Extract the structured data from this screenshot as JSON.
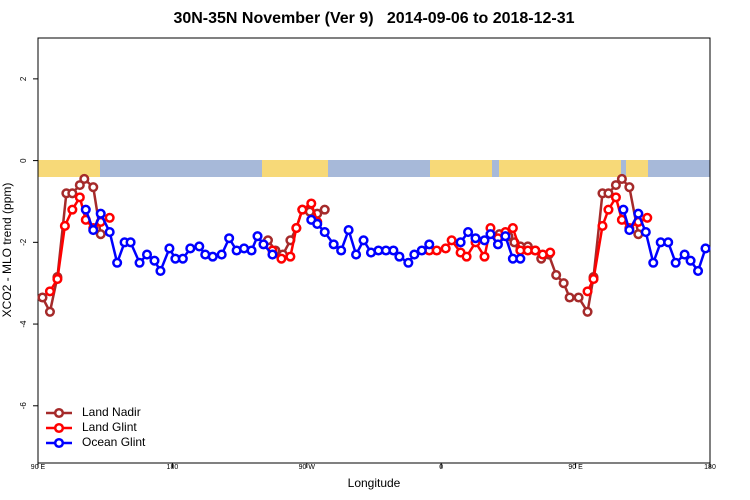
{
  "chart_data": {
    "type": "line",
    "title": "30N-35N November (Ver 9)   2014-09-06 to 2018-12-31",
    "x_label": "Longitude",
    "y_label": "XCO2 - MLO trend (ppm)",
    "xlim": [
      90,
      540
    ],
    "ylim": [
      -7.4,
      3.0
    ],
    "xticks": [
      {
        "value": 90,
        "label": "90 E"
      },
      180,
      {
        "value": 270,
        "label": "90 W"
      },
      {
        "value": 360,
        "label": "0"
      },
      {
        "value": 450,
        "label": "90 E"
      },
      {
        "value": 540,
        "label": "180"
      }
    ],
    "yticks": [
      2,
      0,
      -2,
      -4,
      -6
    ],
    "legend": "bottom-left",
    "grid": false,
    "series": [
      {
        "name": "Land Nadir",
        "color": "#a52a2a",
        "x": [
          93,
          98,
          103,
          109,
          113,
          118,
          121,
          127,
          132,
          null,
          244,
          249,
          254,
          259,
          263,
          267,
          272,
          277,
          282,
          null,
          399,
          405,
          409,
          413,
          418,
          423,
          427,
          432,
          437,
          442,
          446,
          452,
          458,
          462,
          468,
          472,
          477,
          481,
          486,
          492
        ],
        "values": [
          -3.35,
          -3.7,
          -2.85,
          -0.8,
          -0.8,
          -0.6,
          -0.45,
          -0.65,
          -1.8,
          null,
          -1.95,
          -2.2,
          -2.3,
          -1.95,
          -1.65,
          -1.2,
          -1.25,
          -1.3,
          -1.2,
          null,
          -1.8,
          -1.85,
          -2.0,
          -2.1,
          -2.1,
          -2.2,
          -2.4,
          -2.3,
          -2.8,
          -3.0,
          -3.35,
          -3.35,
          -3.7,
          -2.85,
          -0.8,
          -0.8,
          -0.6,
          -0.45,
          -0.65,
          -1.8
        ]
      },
      {
        "name": "Land Glint",
        "color": "#ff0000",
        "x": [
          98,
          103,
          108,
          113,
          118,
          122,
          127,
          132,
          138,
          null,
          247,
          253,
          259,
          263,
          267,
          273,
          277,
          null,
          352,
          357,
          363,
          367,
          373,
          377,
          383,
          389,
          393,
          398,
          403,
          408,
          413,
          418,
          423,
          428,
          433,
          null,
          458,
          462,
          468,
          472,
          477,
          481,
          486,
          492,
          498
        ],
        "values": [
          -3.2,
          -2.9,
          -1.6,
          -1.2,
          -0.9,
          -1.45,
          -1.65,
          -1.5,
          -1.4,
          null,
          -2.2,
          -2.4,
          -2.35,
          -1.65,
          -1.2,
          -1.05,
          -1.5,
          null,
          -2.2,
          -2.2,
          -2.15,
          -1.95,
          -2.25,
          -2.35,
          -2.0,
          -2.35,
          -1.65,
          -1.9,
          -1.75,
          -1.65,
          -2.2,
          -2.2,
          -2.2,
          -2.3,
          -2.25,
          null,
          -3.2,
          -2.9,
          -1.6,
          -1.2,
          -0.9,
          -1.45,
          -1.65,
          -1.5,
          -1.4
        ]
      },
      {
        "name": "Ocean Glint",
        "color": "#0000ff",
        "x": [
          122,
          127,
          132,
          138,
          143,
          148,
          152,
          158,
          163,
          168,
          172,
          178,
          182,
          187,
          192,
          198,
          202,
          207,
          213,
          218,
          223,
          228,
          233,
          237,
          241,
          247,
          null,
          273,
          277,
          282,
          288,
          293,
          298,
          303,
          308,
          313,
          318,
          323,
          328,
          332,
          338,
          342,
          347,
          352,
          null,
          373,
          378,
          383,
          389,
          393,
          398,
          403,
          408,
          413,
          null,
          482,
          486,
          492,
          497,
          502,
          507,
          512,
          517,
          523,
          527,
          532,
          537
        ],
        "values": [
          -1.2,
          -1.7,
          -1.3,
          -1.75,
          -2.5,
          -2.0,
          -2.0,
          -2.5,
          -2.3,
          -2.45,
          -2.7,
          -2.15,
          -2.4,
          -2.4,
          -2.15,
          -2.1,
          -2.3,
          -2.35,
          -2.3,
          -1.9,
          -2.2,
          -2.15,
          -2.2,
          -1.85,
          -2.05,
          -2.3,
          null,
          -1.45,
          -1.55,
          -1.75,
          -2.05,
          -2.2,
          -1.7,
          -2.3,
          -1.95,
          -2.25,
          -2.2,
          -2.2,
          -2.2,
          -2.35,
          -2.5,
          -2.3,
          -2.2,
          -2.05,
          null,
          -2.0,
          -1.75,
          -1.9,
          -1.95,
          -1.8,
          -2.05,
          -1.85,
          -2.4,
          -2.4,
          null,
          -1.2,
          -1.7,
          -1.3,
          -1.75,
          -2.5,
          -2.0,
          -2.0,
          -2.5,
          -2.3,
          -2.45,
          -2.7,
          -2.15
        ]
      }
    ]
  }
}
